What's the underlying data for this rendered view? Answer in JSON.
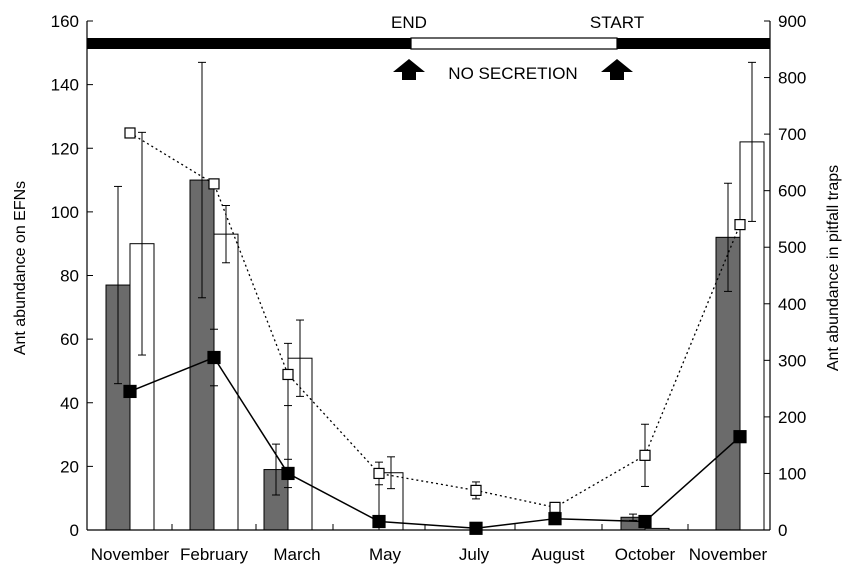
{
  "chart_data": {
    "type": "bar",
    "categories": [
      "November",
      "February",
      "March",
      "May",
      "July",
      "August",
      "October",
      "November"
    ],
    "xlabel": "",
    "y_left": {
      "label": "Ant abundance on EFNs",
      "ylim": [
        0,
        160
      ],
      "ticks": [
        "0",
        "20",
        "40",
        "60",
        "80",
        "100",
        "120",
        "140",
        "160"
      ]
    },
    "y_right": {
      "label": "Ant abundance in pitfall traps",
      "ylim": [
        0,
        900
      ],
      "ticks": [
        "0",
        "100",
        "200",
        "300",
        "400",
        "500",
        "600",
        "700",
        "800",
        "900"
      ]
    },
    "bar_series": [
      {
        "fill": "#6b6b6b",
        "axis": "left",
        "values": [
          77,
          110,
          19,
          0,
          0,
          0,
          4,
          92
        ],
        "err": [
          31,
          37,
          8,
          0,
          0,
          0,
          1,
          17
        ]
      },
      {
        "fill": "#ffffff",
        "axis": "left",
        "values": [
          90,
          93,
          54,
          18,
          0,
          0,
          0.5,
          122
        ],
        "err": [
          35,
          9,
          12,
          5,
          0,
          0,
          0,
          25
        ]
      }
    ],
    "line_series": [
      {
        "marker": "square-open",
        "style": "dotted",
        "axis": "right",
        "values": [
          702,
          612,
          275,
          100,
          70,
          40,
          132,
          540
        ],
        "err": [
          0,
          0,
          55,
          20,
          15,
          0,
          55,
          0
        ]
      },
      {
        "marker": "square-filled",
        "style": "solid",
        "axis": "right",
        "values": [
          245,
          305,
          100,
          15,
          3,
          20,
          15,
          165
        ],
        "err": [
          0,
          50,
          25,
          0,
          0,
          0,
          0,
          0
        ]
      }
    ],
    "secretion_bar": {
      "end_label": "END",
      "start_label": "START",
      "no_secretion_label": "NO SECRETION",
      "no_secretion_span": [
        "May",
        "October"
      ]
    },
    "grid": false
  }
}
